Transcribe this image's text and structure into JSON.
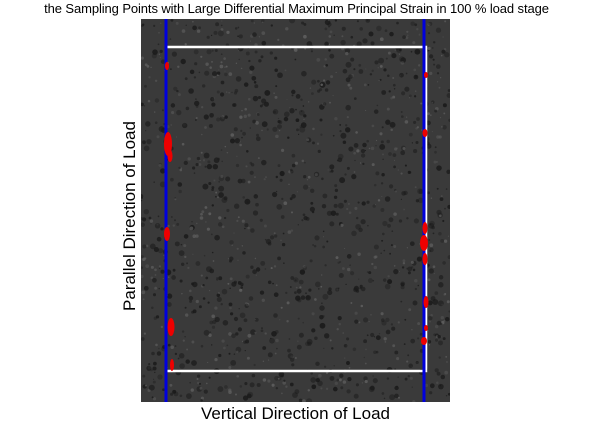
{
  "figure": {
    "title": "the Sampling Points with Large Differential Maximum Principal Strain in 100 % load stage",
    "ylabel": "Parallel Direction of Load",
    "xlabel": "Vertical Direction of Load"
  },
  "colors": {
    "background": "#ffffff",
    "specimen_base": "#3a3a3a",
    "speckle_dark": "#1a1a1a",
    "speckle_light": "#5e5e5e",
    "boundary_lines": "#0000dd",
    "region_outline": "#ffffff",
    "strain_points": "#ee0000"
  },
  "image_content": "grayscale speckle-pattern specimen photograph with white rectangular region outline, two vertical blue boundary lines, and red marked sampling points clustered along both vertical edges"
}
